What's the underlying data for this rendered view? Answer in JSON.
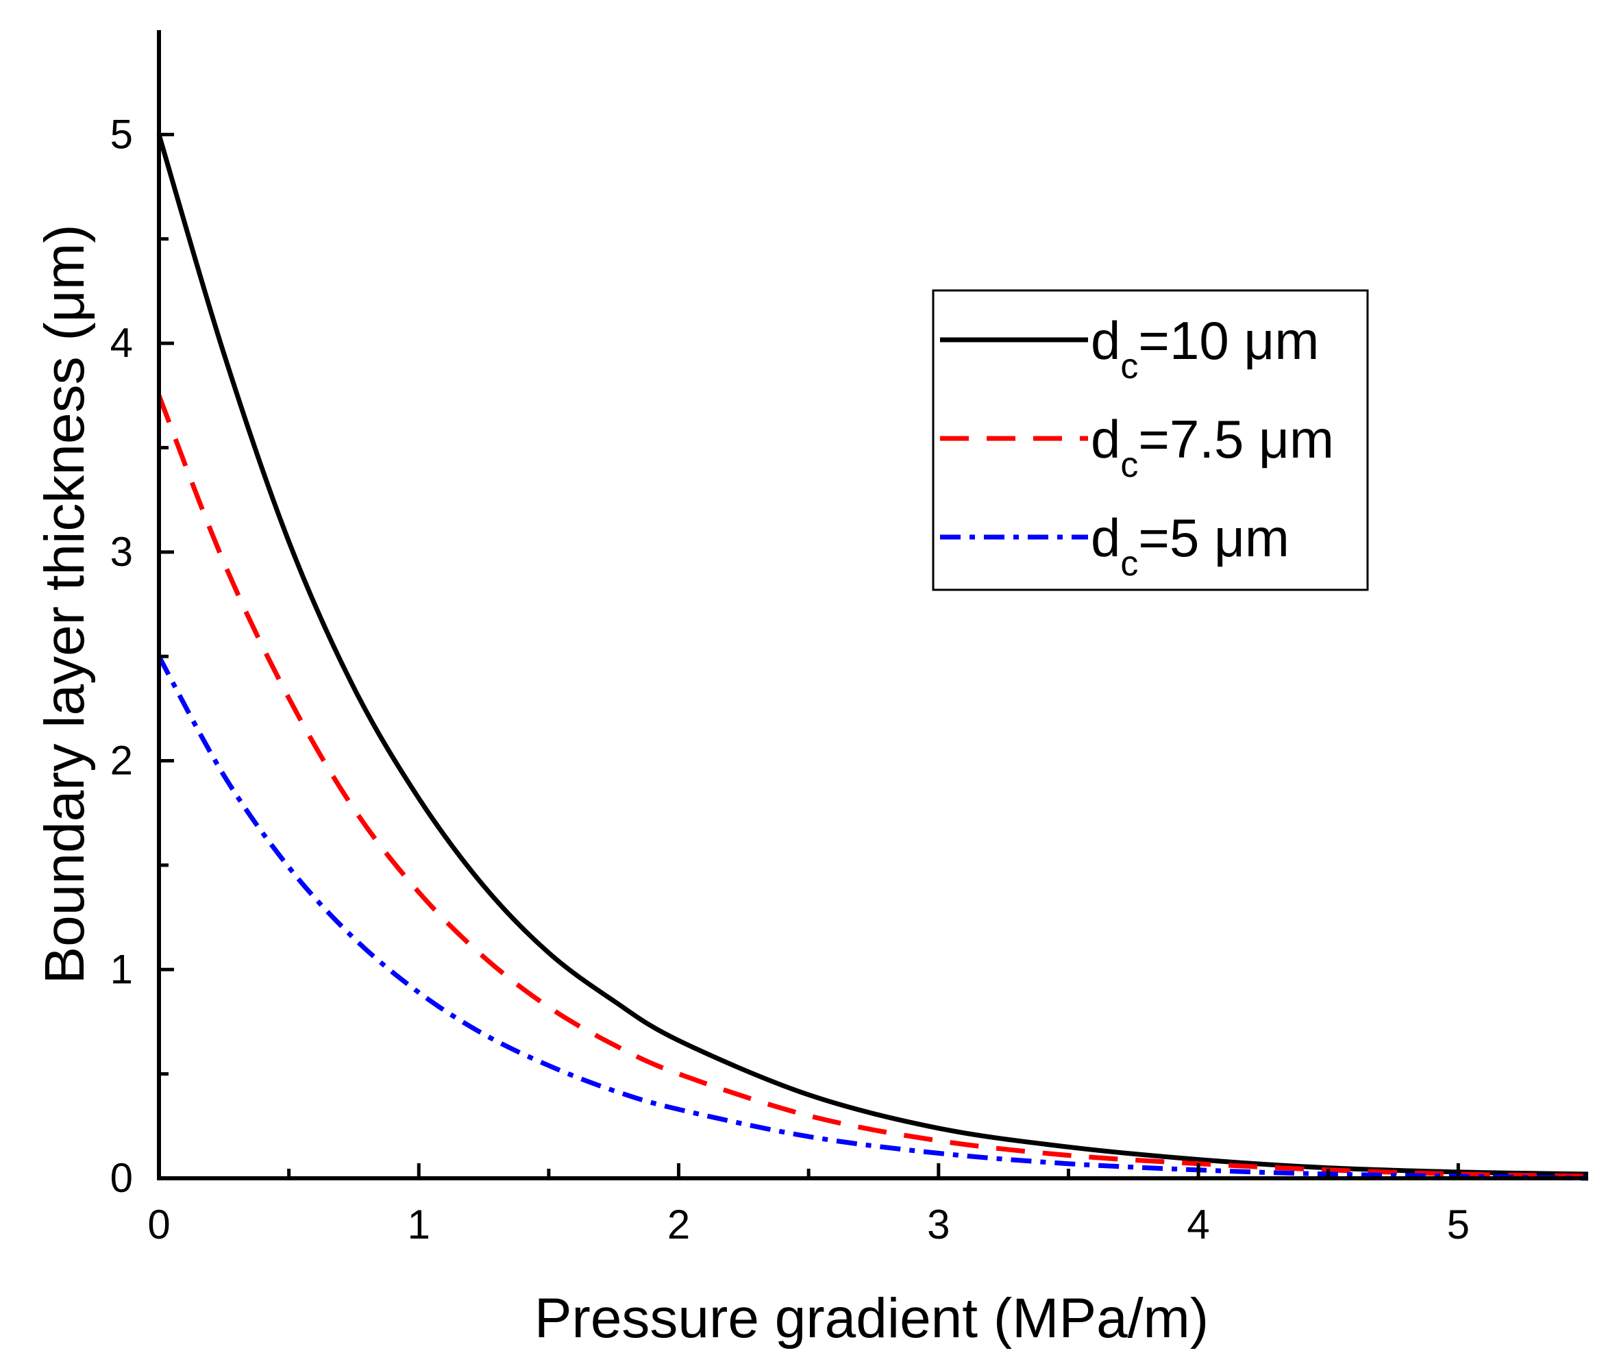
{
  "chart_data": {
    "type": "line",
    "title": "",
    "xlabel": "Pressure gradient (MPa/m)",
    "ylabel": "Boundary layer thickness (μm)",
    "xlim": [
      0,
      5.5
    ],
    "ylim": [
      0,
      5.5
    ],
    "x_ticks": [
      "0",
      "1",
      "2",
      "3",
      "4",
      "5"
    ],
    "y_ticks": [
      "0",
      "1",
      "2",
      "3",
      "4",
      "5"
    ],
    "legend_position": "top-right",
    "series": [
      {
        "name": "d_c=10 μm",
        "legend_main": "d",
        "legend_sub": "c",
        "legend_rest": "=10 μm",
        "color": "#000000",
        "dash": "solid",
        "x": [
          0,
          0.25,
          0.5,
          0.75,
          1.0,
          1.25,
          1.5,
          1.75,
          2.0,
          2.5,
          3.0,
          3.5,
          4.0,
          4.5,
          5.0,
          5.5
        ],
        "y": [
          5.0,
          3.95,
          3.05,
          2.35,
          1.82,
          1.4,
          1.08,
          0.85,
          0.66,
          0.4,
          0.24,
          0.15,
          0.09,
          0.05,
          0.03,
          0.02
        ]
      },
      {
        "name": "d_c=7.5 μm",
        "legend_main": "d",
        "legend_sub": "c",
        "legend_rest": "=7.5 μm",
        "color": "#ff0000",
        "dash": "dash",
        "x": [
          0,
          0.25,
          0.5,
          0.75,
          1.0,
          1.25,
          1.5,
          1.75,
          2.0,
          2.5,
          3.0,
          3.5,
          4.0,
          4.5,
          5.0,
          5.5
        ],
        "y": [
          3.75,
          2.95,
          2.3,
          1.77,
          1.37,
          1.06,
          0.82,
          0.64,
          0.5,
          0.3,
          0.18,
          0.11,
          0.07,
          0.04,
          0.02,
          0.01
        ]
      },
      {
        "name": "d_c=5 μm",
        "legend_main": "d",
        "legend_sub": "c",
        "legend_rest": "=5 μm",
        "color": "#0000ff",
        "dash": "dashdot",
        "x": [
          0,
          0.25,
          0.5,
          0.75,
          1.0,
          1.25,
          1.5,
          1.75,
          2.0,
          2.5,
          3.0,
          3.5,
          4.0,
          4.5,
          5.0,
          5.5
        ],
        "y": [
          2.5,
          1.93,
          1.49,
          1.15,
          0.89,
          0.69,
          0.54,
          0.42,
          0.33,
          0.2,
          0.12,
          0.07,
          0.04,
          0.02,
          0.01,
          0.0
        ]
      }
    ]
  }
}
